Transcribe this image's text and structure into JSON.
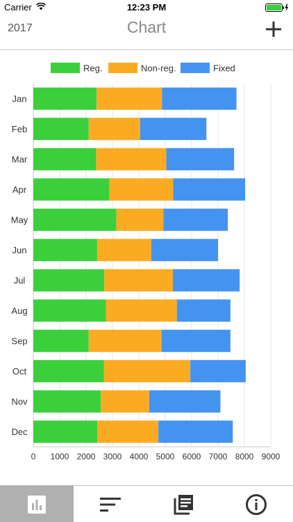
{
  "status_bar": {
    "carrier": "Carrier",
    "time": "12:23 PM"
  },
  "nav": {
    "year": "2017",
    "title": "Chart"
  },
  "tabs": [
    {
      "icon": "bar-chart-icon",
      "active": true
    },
    {
      "icon": "sort-lines-icon",
      "active": false
    },
    {
      "icon": "documents-icon",
      "active": false
    },
    {
      "icon": "info-icon",
      "active": false
    }
  ],
  "colors": {
    "reg": "#3ccf3c",
    "nonreg": "#fbab22",
    "fixed": "#4593f0",
    "accent": "#333333"
  },
  "chart_data": {
    "type": "bar",
    "orientation": "horizontal",
    "stacked": true,
    "categories": [
      "Jan",
      "Feb",
      "Mar",
      "Apr",
      "May",
      "Jun",
      "Jul",
      "Aug",
      "Sep",
      "Oct",
      "Nov",
      "Dec"
    ],
    "series": [
      {
        "name": "Reg.",
        "color": "#3ccf3c",
        "values": [
          2400,
          2100,
          2380,
          2880,
          3150,
          2420,
          2690,
          2750,
          2100,
          2680,
          2560,
          2430
        ]
      },
      {
        "name": "Non-reg.",
        "color": "#fbab22",
        "values": [
          2480,
          1950,
          2660,
          2420,
          1780,
          2050,
          2600,
          2690,
          2760,
          3270,
          1830,
          2310
        ]
      },
      {
        "name": "Fixed",
        "color": "#4593f0",
        "values": [
          2820,
          2510,
          2570,
          2730,
          2440,
          2530,
          2530,
          2030,
          2610,
          2100,
          2700,
          2820
        ]
      }
    ],
    "xlim": [
      0,
      9000
    ],
    "xticks": [
      "0",
      "1000",
      "2000",
      "3000",
      "4000",
      "5000",
      "6000",
      "7000",
      "8000",
      "9000"
    ],
    "grid": true,
    "legend_position": "top"
  }
}
